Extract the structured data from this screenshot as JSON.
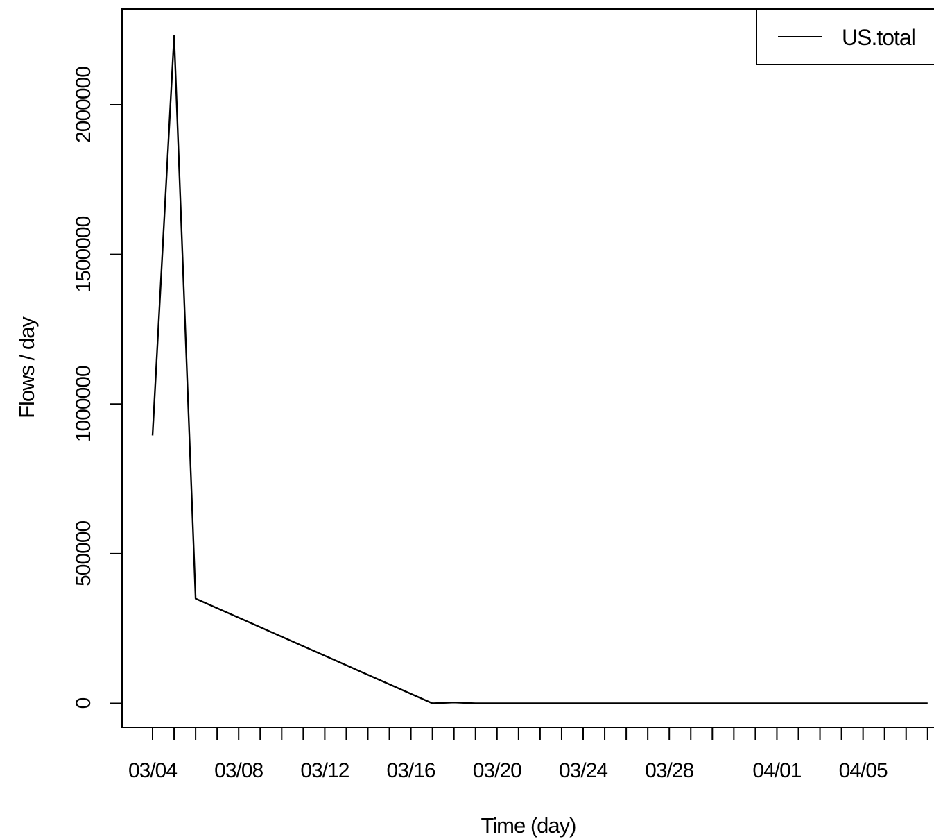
{
  "chart_data": {
    "type": "line",
    "title": "",
    "xlabel": "Time (day)",
    "ylabel": "Flows / day",
    "x_tick_labels": [
      "03/04",
      "03/08",
      "03/12",
      "03/16",
      "03/20",
      "03/24",
      "03/28",
      "04/01",
      "04/05"
    ],
    "y_tick_labels": [
      "0",
      "500000",
      "1000000",
      "1500000",
      "2000000"
    ],
    "y_ticks": [
      0,
      500000,
      1000000,
      1500000,
      2000000
    ],
    "ylim": [
      -80000,
      2320000
    ],
    "xlim": [
      "03/02",
      "04/08"
    ],
    "grid": false,
    "legend": {
      "position": "top-right"
    },
    "series": [
      {
        "name": "US.total",
        "color": "#000000",
        "points": [
          {
            "x": "03/04",
            "y": 895000
          },
          {
            "x": "03/05",
            "y": 2230000
          },
          {
            "x": "03/06",
            "y": 350000
          },
          {
            "x": "03/17",
            "y": 0
          },
          {
            "x": "03/18",
            "y": 3000
          },
          {
            "x": "03/19",
            "y": 0
          },
          {
            "x": "04/08",
            "y": 0
          }
        ]
      }
    ]
  }
}
